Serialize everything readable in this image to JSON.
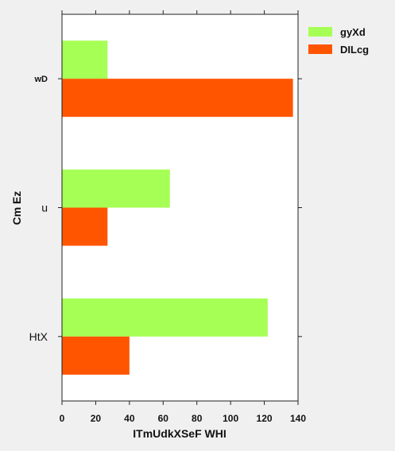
{
  "chart_data": {
    "type": "bar",
    "orientation": "horizontal",
    "categories": [
      "wD",
      "u",
      "HtX"
    ],
    "series": [
      {
        "name": "gyXd",
        "color": "#a6ff55",
        "values": [
          27,
          64,
          122
        ]
      },
      {
        "name": "DILcg",
        "color": "#ff5500",
        "values": [
          137,
          27,
          40
        ]
      }
    ],
    "xlabel": "ITmUdkXSeF WHI",
    "ylabel": "Cm Ez",
    "xlim": [
      0,
      140
    ],
    "xticks": [
      0,
      20,
      40,
      60,
      80,
      100,
      120,
      140
    ],
    "grid": false,
    "legend_position": "outside-top-right"
  }
}
